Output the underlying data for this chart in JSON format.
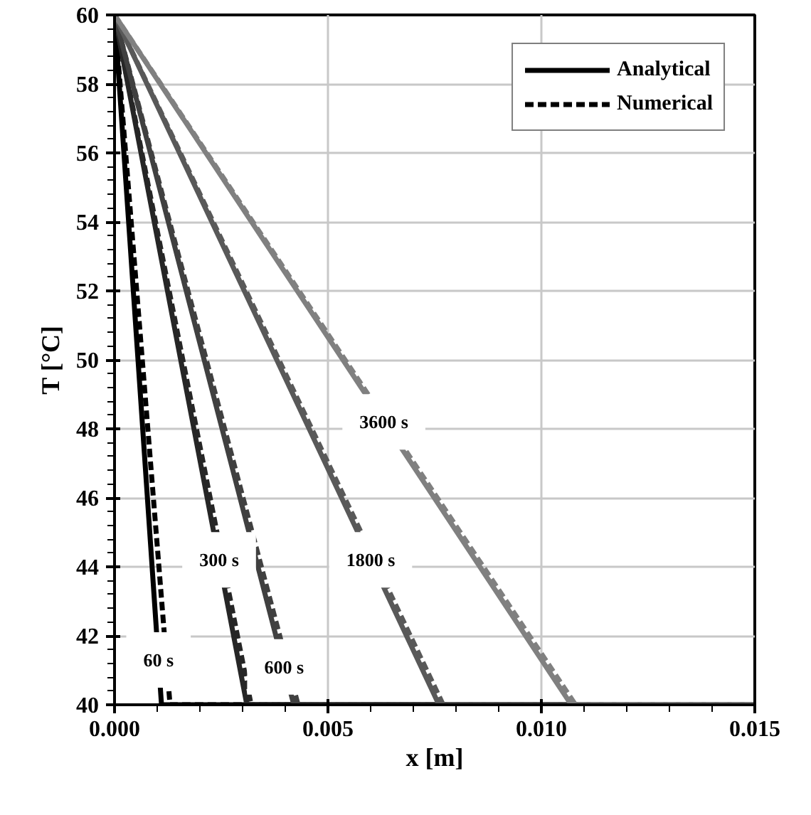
{
  "chart_data": {
    "type": "line",
    "xlabel": "x [m]",
    "ylabel": "T [°C]",
    "xlim": [
      0,
      0.015
    ],
    "ylim": [
      40,
      60
    ],
    "xticks": [
      {
        "value": 0,
        "label": "0.000"
      },
      {
        "value": 0.005,
        "label": "0.005"
      },
      {
        "value": 0.01,
        "label": "0.010"
      },
      {
        "value": 0.015,
        "label": "0.015"
      }
    ],
    "yticks": [
      40,
      42,
      44,
      46,
      48,
      50,
      52,
      54,
      56,
      58,
      60
    ],
    "grid": true,
    "legend": "top right",
    "marker": "none",
    "series": [
      {
        "name": "Analytical",
        "color": "#000000",
        "line_style": "solid",
        "x": [
          0,
          0.0011,
          0.015
        ],
        "values": [
          60,
          40,
          40
        ]
      },
      {
        "name": "Numerical",
        "color": "#000000",
        "line_style": "dashed",
        "x": [
          0,
          0.0013,
          0.015
        ],
        "values": [
          60,
          40,
          40
        ]
      },
      {
        "color": "#262626",
        "line_style": "solid",
        "x": [
          0,
          0.0031,
          0.015
        ],
        "values": [
          60,
          40,
          40
        ]
      },
      {
        "color": "#262626",
        "line_style": "dashed",
        "x": [
          0,
          0.0032,
          0.015
        ],
        "values": [
          60,
          40,
          40
        ]
      },
      {
        "color": "#404040",
        "line_style": "solid",
        "x": [
          0,
          0.0042,
          0.015
        ],
        "values": [
          60,
          40,
          40
        ]
      },
      {
        "color": "#404040",
        "line_style": "dashed",
        "x": [
          0,
          0.0043,
          0.015
        ],
        "values": [
          60,
          40,
          40
        ]
      },
      {
        "color": "#595959",
        "line_style": "solid",
        "x": [
          0,
          0.0076,
          0.015
        ],
        "values": [
          60,
          40,
          40
        ]
      },
      {
        "color": "#595959",
        "line_style": "dashed",
        "x": [
          0,
          0.0077,
          0.015
        ],
        "values": [
          60,
          40,
          40
        ]
      },
      {
        "color": "#808080",
        "line_style": "solid",
        "x": [
          0,
          0.0107,
          0.015
        ],
        "values": [
          60,
          40,
          40
        ]
      },
      {
        "color": "#808080",
        "line_style": "dashed",
        "x": [
          0,
          0.0108,
          0.015
        ],
        "values": [
          60,
          40,
          40
        ]
      }
    ],
    "annotations": [
      {
        "text": "60 s",
        "x": 0.00103,
        "y": 41.3
      },
      {
        "text": "300 s",
        "x": 0.00245,
        "y": 44.2
      },
      {
        "text": "600 s",
        "x": 0.00397,
        "y": 41.1
      },
      {
        "text": "1800 s",
        "x": 0.006,
        "y": 44.2
      },
      {
        "text": "3600 s",
        "x": 0.00631,
        "y": 48.2
      }
    ]
  }
}
